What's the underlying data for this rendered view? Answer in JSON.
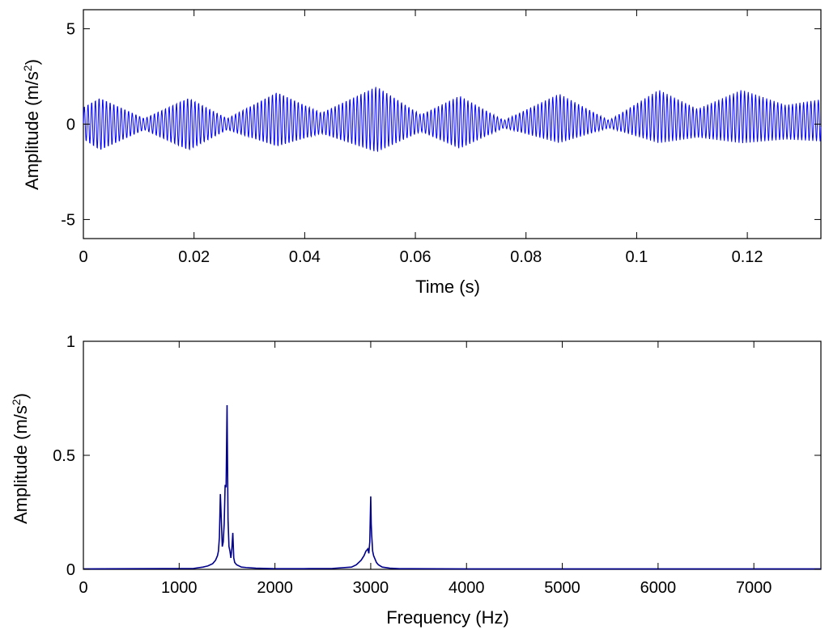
{
  "chart_data": [
    {
      "type": "line",
      "xlabel": "Time (s)",
      "ylabel_main": "Amplitude (m/s",
      "ylabel_sup": "2",
      "ylabel_close": ")",
      "xlim": [
        0,
        0.1333
      ],
      "ylim": [
        -6,
        6
      ],
      "xticks": [
        0,
        0.02,
        0.04,
        0.06,
        0.08,
        0.1,
        0.12
      ],
      "xtick_labels": [
        "0",
        "0.02",
        "0.04",
        "0.06",
        "0.08",
        "0.1",
        "0.12"
      ],
      "yticks": [
        -5,
        0,
        5
      ],
      "ytick_labels": [
        "-5",
        "0",
        "5"
      ],
      "grid": false,
      "color": "#0000ff",
      "signal": {
        "carrier_hz": 1500,
        "envelope": {
          "x": [
            0,
            0.003,
            0.011,
            0.019,
            0.026,
            0.035,
            0.043,
            0.053,
            0.061,
            0.068,
            0.076,
            0.086,
            0.095,
            0.104,
            0.111,
            0.119,
            0.127,
            0.1333
          ],
          "upper": [
            0.9,
            1.4,
            0.3,
            1.4,
            0.3,
            1.7,
            0.6,
            2.0,
            0.5,
            1.5,
            0.2,
            1.6,
            0.2,
            1.8,
            0.8,
            1.8,
            1.0,
            1.3
          ],
          "lower": [
            -0.8,
            -1.4,
            -0.3,
            -1.4,
            -0.3,
            -1.2,
            -0.5,
            -1.5,
            -0.4,
            -1.3,
            -0.2,
            -1.0,
            -0.2,
            -1.0,
            -0.7,
            -1.0,
            -0.8,
            -0.9
          ]
        }
      }
    },
    {
      "type": "line",
      "xlabel": "Frequency (Hz)",
      "ylabel_main": "Amplitude (m/s",
      "ylabel_sup": "2",
      "ylabel_close": ")",
      "xlim": [
        0,
        7700
      ],
      "ylim": [
        0,
        1
      ],
      "xticks": [
        0,
        1000,
        2000,
        3000,
        4000,
        5000,
        6000,
        7000
      ],
      "xtick_labels": [
        "0",
        "1000",
        "2000",
        "3000",
        "4000",
        "5000",
        "6000",
        "7000"
      ],
      "yticks": [
        0,
        0.5,
        1
      ],
      "ytick_labels": [
        "0",
        "0.5",
        "1"
      ],
      "grid": false,
      "color": "#00008b",
      "x": [
        0,
        1150,
        1250,
        1300,
        1350,
        1380,
        1400,
        1410,
        1420,
        1430,
        1440,
        1450,
        1460,
        1470,
        1480,
        1490,
        1500,
        1510,
        1520,
        1530,
        1540,
        1550,
        1560,
        1570,
        1580,
        1600,
        1650,
        1700,
        1800,
        2000,
        2300,
        2600,
        2800,
        2850,
        2900,
        2930,
        2950,
        2970,
        2980,
        2990,
        3000,
        3005,
        3010,
        3020,
        3030,
        3040,
        3060,
        3080,
        3120,
        3200,
        3300,
        4000,
        5000,
        6000,
        7000,
        7700
      ],
      "y": [
        0.002,
        0.004,
        0.01,
        0.015,
        0.025,
        0.04,
        0.06,
        0.08,
        0.14,
        0.33,
        0.22,
        0.1,
        0.12,
        0.2,
        0.37,
        0.36,
        0.72,
        0.22,
        0.1,
        0.08,
        0.05,
        0.09,
        0.16,
        0.05,
        0.03,
        0.02,
        0.01,
        0.008,
        0.005,
        0.003,
        0.003,
        0.004,
        0.01,
        0.02,
        0.04,
        0.06,
        0.08,
        0.09,
        0.07,
        0.12,
        0.32,
        0.2,
        0.15,
        0.08,
        0.06,
        0.05,
        0.03,
        0.02,
        0.01,
        0.005,
        0.003,
        0.002,
        0.002,
        0.002,
        0.002,
        0.002
      ]
    }
  ]
}
